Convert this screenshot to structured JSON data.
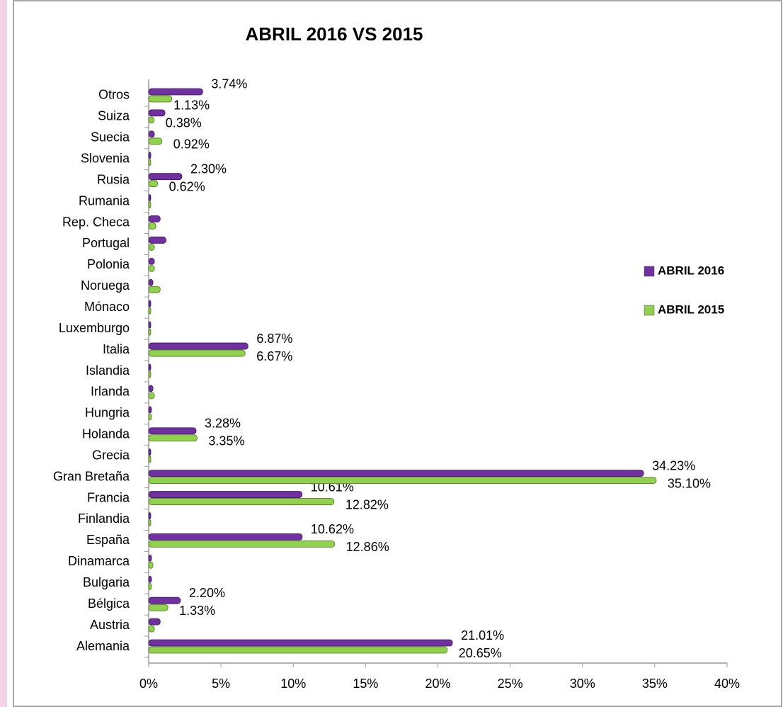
{
  "chart_data": {
    "type": "barh",
    "title": "ABRIL  2016  VS  2015",
    "categories": [
      "Alemania",
      "Austria",
      "Bélgica",
      "Bulgaria",
      "Dinamarca",
      "España",
      "Finlandia",
      "Francia",
      "Gran Bretaña",
      "Grecia",
      "Holanda",
      "Hungria",
      "Irlanda",
      "Islandia",
      "Italia",
      "Luxemburgo",
      "Mónaco",
      "Noruega",
      "Polonia",
      "Portugal",
      "Rep. Checa",
      "Rumania",
      "Rusia",
      "Slovenia",
      "Suecia",
      "Suiza",
      "Otros"
    ],
    "series": [
      {
        "name": "ABRIL 2016",
        "color": "#7030a0",
        "values": [
          21.01,
          0.8,
          2.2,
          0.2,
          0.2,
          10.62,
          0.1,
          10.61,
          34.23,
          0.1,
          3.28,
          0.2,
          0.3,
          0.1,
          6.87,
          0.1,
          0.1,
          0.3,
          0.4,
          1.2,
          0.8,
          0.1,
          2.3,
          0.1,
          0.4,
          1.13,
          3.74
        ],
        "value_labels": [
          "21.01%",
          null,
          "2.20%",
          null,
          null,
          "10.62%",
          null,
          "10.61%",
          "34.23%",
          null,
          "3.28%",
          null,
          null,
          null,
          "6.87%",
          null,
          null,
          null,
          null,
          null,
          null,
          null,
          "2.30%",
          null,
          null,
          "1.13%",
          "3.74%"
        ]
      },
      {
        "name": "ABRIL 2015",
        "color": "#92d050",
        "values": [
          20.65,
          0.4,
          1.33,
          0.2,
          0.3,
          12.86,
          0.1,
          12.82,
          35.1,
          0.1,
          3.35,
          0.2,
          0.4,
          0.1,
          6.67,
          0.1,
          0.1,
          0.8,
          0.4,
          0.4,
          0.5,
          0.1,
          0.62,
          0.1,
          0.92,
          0.38,
          1.6
        ],
        "value_labels": [
          "20.65%",
          null,
          "1.33%",
          null,
          null,
          "12.86%",
          null,
          "12.82%",
          "35.10%",
          null,
          "3.35%",
          null,
          null,
          null,
          "6.67%",
          null,
          null,
          null,
          null,
          null,
          null,
          null,
          "0.62%",
          null,
          "0.92%",
          "0.38%",
          null
        ]
      }
    ],
    "xlim": [
      0,
      40
    ],
    "xticks": [
      {
        "value": 0,
        "label": "0%"
      },
      {
        "value": 5,
        "label": "5%"
      },
      {
        "value": 10,
        "label": "10%"
      },
      {
        "value": 15,
        "label": "15%"
      },
      {
        "value": 20,
        "label": "20%"
      },
      {
        "value": 25,
        "label": "25%"
      },
      {
        "value": 30,
        "label": "30%"
      },
      {
        "value": 35,
        "label": "35%"
      },
      {
        "value": 40,
        "label": "40%"
      }
    ],
    "legend": "right"
  }
}
